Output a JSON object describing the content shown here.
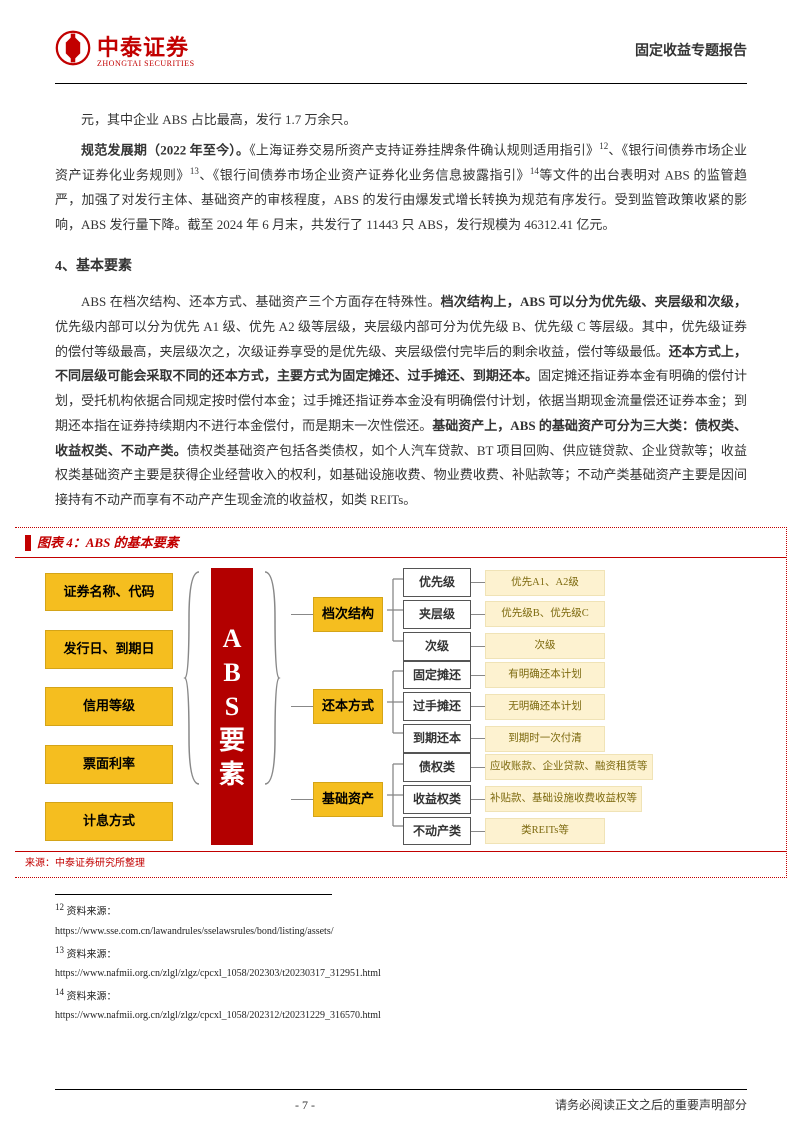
{
  "header": {
    "logo_cn": "中泰证券",
    "logo_en": "ZHONGTAI SECURITIES",
    "report_type": "固定收益专题报告"
  },
  "body": {
    "p1": "元，其中企业 ABS 占比最高，发行 1.7 万余只。",
    "p2a": "规范发展期（2022 年至今）。",
    "p2b": "《上海证券交易所资产支持证券挂牌条件确认规则适用指引》",
    "p2c": "、《银行间债券市场企业资产证券化业务规则》",
    "p2d": "、《银行间债券市场企业资产证券化业务信息披露指引》",
    "p2e": "等文件的出台表明对 ABS 的监管趋严，加强了对发行主体、基础资产的审核程度，ABS 的发行由爆发式增长转换为规范有序发行。受到监管政策收紧的影响，ABS 发行量下降。截至 2024 年 6 月末，共发行了 11443 只 ABS，发行规模为 46312.41 亿元。",
    "section4": "4、基本要素",
    "p3a": "ABS 在档次结构、还本方式、基础资产三个方面存在特殊性。",
    "p3b": "档次结构上，ABS 可以分为优先级、夹层级和次级，",
    "p3c": "优先级内部可以分为优先 A1 级、优先 A2 级等层级，夹层级内部可分为优先级 B、优先级 C 等层级。其中，优先级证券的偿付等级最高，夹层级次之，次级证券享受的是优先级、夹层级偿付完毕后的剩余收益，偿付等级最低。",
    "p3d": "还本方式上，不同层级可能会采取不同的还本方式，主要方式为固定摊还、过手摊还、到期还本。",
    "p3e": "固定摊还指证券本金有明确的偿付计划，受托机构依据合同规定按时偿付本金；过手摊还指证券本金没有明确偿付计划，依据当期现金流量偿还证券本金；到期还本指在证券持续期内不进行本金偿付，而是期末一次性偿还。",
    "p3f": "基础资产上，ABS 的基础资产可分为三大类：债权类、收益权类、不动产类。",
    "p3g": "债权类基础资产包括各类债权，如个人汽车贷款、BT 项目回购、供应链贷款、企业贷款等；收益权类基础资产主要是获得企业经营收入的权利，如基础设施收费、物业费收费、补贴款等；不动产类基础资产主要是因间接持有不动产而享有不动产产生现金流的收益权，如类 REITs。"
  },
  "figure": {
    "title": "图表 4：ABS 的基本要素",
    "spine": "ABS要素",
    "left_items": [
      "证券名称、代码",
      "发行日、到期日",
      "信用等级",
      "票面利率",
      "计息方式"
    ],
    "categories": [
      {
        "label": "档次结构",
        "subs": [
          {
            "w": "优先级",
            "b": "优先A1、A2级"
          },
          {
            "w": "夹层级",
            "b": "优先级B、优先级C"
          },
          {
            "w": "次级",
            "b": "次级"
          }
        ]
      },
      {
        "label": "还本方式",
        "subs": [
          {
            "w": "固定摊还",
            "b": "有明确还本计划"
          },
          {
            "w": "过手摊还",
            "b": "无明确还本计划"
          },
          {
            "w": "到期还本",
            "b": "到期时一次付清"
          }
        ]
      },
      {
        "label": "基础资产",
        "subs": [
          {
            "w": "债权类",
            "b": "应收账款、企业贷款、融资租赁等"
          },
          {
            "w": "收益权类",
            "b": "补贴款、基础设施收费收益权等"
          },
          {
            "w": "不动产类",
            "b": "类REITs等"
          }
        ]
      }
    ],
    "source": "来源：中泰证券研究所整理",
    "colors": {
      "red": "#b30000",
      "title_red": "#c20000",
      "yellow": "#f5be1f",
      "beige": "#fdf2d0",
      "beige_text": "#7d6a0f",
      "connector": "#888888"
    }
  },
  "footnotes": {
    "f12": "资料来源：https://www.sse.com.cn/lawandrules/sselawsrules/bond/listing/assets/",
    "f13": "资料来源：https://www.nafmii.org.cn/zlgl/zlgz/cpcxl_1058/202303/t20230317_312951.html",
    "f14": "资料来源：https://www.nafmii.org.cn/zlgl/zlgz/cpcxl_1058/202312/t20231229_316570.html"
  },
  "footer": {
    "page": "- 7 -",
    "disclaimer": "请务必阅读正文之后的重要声明部分"
  }
}
